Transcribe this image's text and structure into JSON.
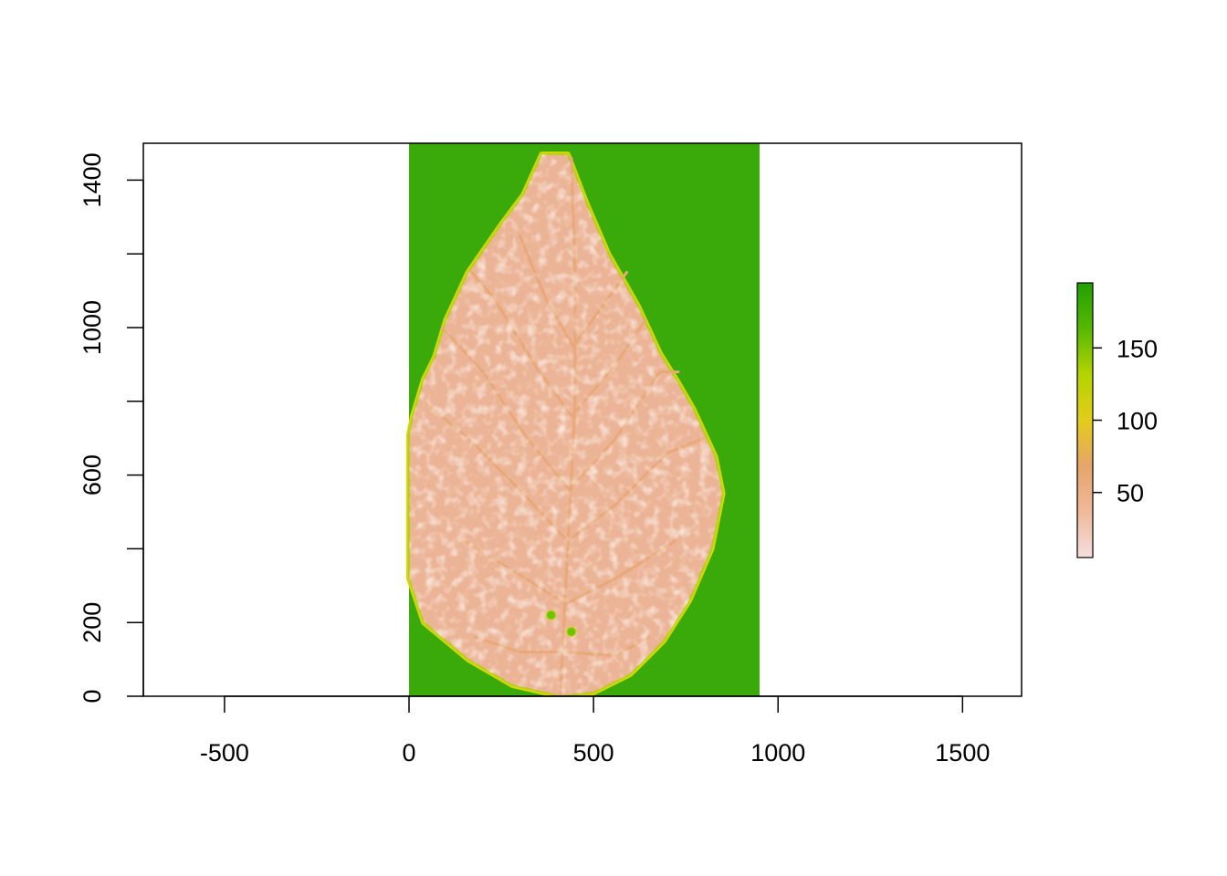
{
  "chart_data": {
    "type": "heatmap",
    "title": "",
    "xlabel": "",
    "ylabel": "",
    "xlim": [
      -720,
      1660
    ],
    "ylim": [
      0,
      1500
    ],
    "x_ticks": [
      -500,
      0,
      500,
      1000,
      1500
    ],
    "x_tick_labels": [
      "-500",
      "0",
      "500",
      "1000",
      "1500"
    ],
    "y_ticks": [
      0,
      200,
      400,
      600,
      800,
      1000,
      1200,
      1400
    ],
    "y_tick_labels": [
      "0",
      "200",
      "",
      "600",
      "",
      "1000",
      "",
      "1400"
    ],
    "raster_extent": {
      "xmin": 0,
      "xmax": 950,
      "ymin": 0,
      "ymax": 1500
    },
    "leaf_outline": [
      [
        410,
        0
      ],
      [
        500,
        10
      ],
      [
        600,
        60
      ],
      [
        690,
        150
      ],
      [
        760,
        260
      ],
      [
        820,
        400
      ],
      [
        850,
        550
      ],
      [
        830,
        650
      ],
      [
        770,
        780
      ],
      [
        730,
        850
      ],
      [
        680,
        930
      ],
      [
        620,
        1060
      ],
      [
        540,
        1200
      ],
      [
        480,
        1340
      ],
      [
        430,
        1470
      ],
      [
        360,
        1470
      ],
      [
        310,
        1360
      ],
      [
        250,
        1280
      ],
      [
        160,
        1150
      ],
      [
        100,
        1020
      ],
      [
        70,
        920
      ],
      [
        40,
        860
      ],
      [
        10,
        760
      ],
      [
        0,
        710
      ],
      [
        0,
        320
      ],
      [
        40,
        200
      ],
      [
        160,
        100
      ],
      [
        280,
        30
      ]
    ],
    "spots": [
      [
        385,
        220
      ],
      [
        440,
        175
      ]
    ],
    "legend": {
      "position": "right",
      "type": "colorbar",
      "min": 5,
      "max": 195,
      "ticks": [
        50,
        100,
        150
      ],
      "tick_labels": [
        "50",
        "100",
        "150"
      ],
      "colors": [
        "#f5dede",
        "#efb99a",
        "#e8a46a",
        "#e3cc1a",
        "#b4d400",
        "#56b800",
        "#21a000"
      ]
    },
    "colors": {
      "background_cells": "#3aaa0a",
      "leaf": "#ecb496",
      "leaf_light": "#f5d6cd",
      "vein": "#e8a878",
      "edge": "#d8d800"
    }
  }
}
